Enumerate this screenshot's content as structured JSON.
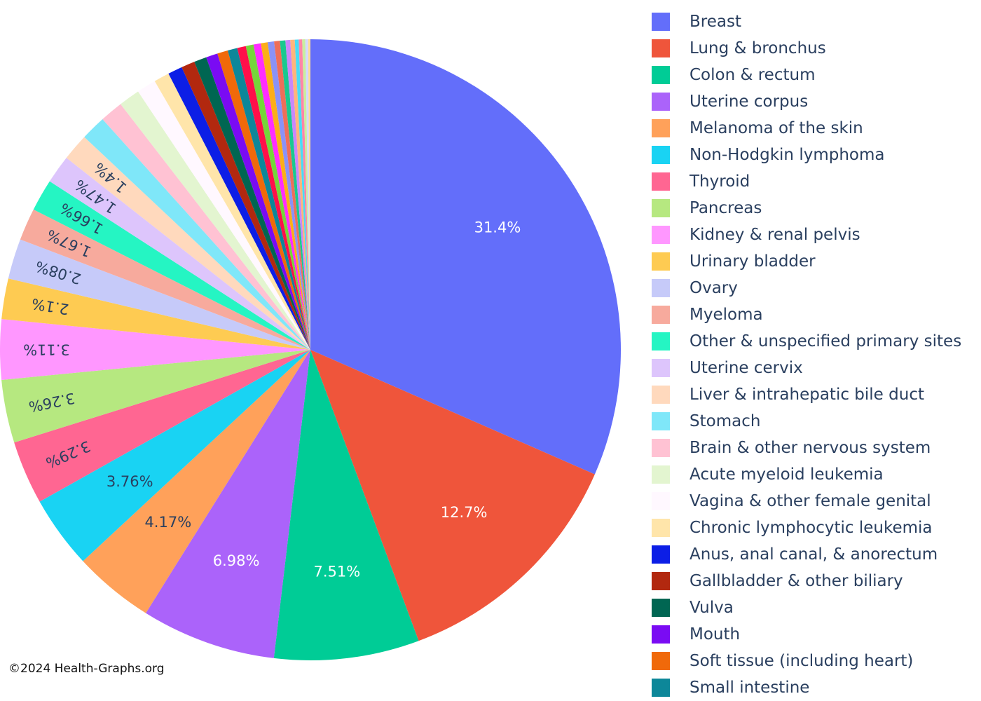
{
  "copyright": "©2024 Health-Graphs.org",
  "chart_data": {
    "type": "pie",
    "title": "",
    "direction": "clockwise",
    "start": "12 o'clock",
    "legend_position": "right",
    "slices": [
      {
        "label": "Breast",
        "value": 31.4,
        "text": "31.4%",
        "color": "#636efa"
      },
      {
        "label": "Lung & bronchus",
        "value": 12.7,
        "text": "12.7%",
        "color": "#ef553b"
      },
      {
        "label": "Colon & rectum",
        "value": 7.51,
        "text": "7.51%",
        "color": "#00cc96"
      },
      {
        "label": "Uterine corpus",
        "value": 6.98,
        "text": "6.98%",
        "color": "#ab63fa"
      },
      {
        "label": "Melanoma of the skin",
        "value": 4.17,
        "text": "4.17%",
        "color": "#ffa15a"
      },
      {
        "label": "Non-Hodgkin lymphoma",
        "value": 3.76,
        "text": "3.76%",
        "color": "#19d3f3"
      },
      {
        "label": "Thyroid",
        "value": 3.29,
        "text": "3.29%",
        "color": "#ff6692"
      },
      {
        "label": "Pancreas",
        "value": 3.26,
        "text": "3.26%",
        "color": "#b6e880"
      },
      {
        "label": "Kidney & renal pelvis",
        "value": 3.11,
        "text": "3.11%",
        "color": "#ff97ff"
      },
      {
        "label": "Urinary bladder",
        "value": 2.1,
        "text": "2.1%",
        "color": "#fecb52"
      },
      {
        "label": "Ovary",
        "value": 2.08,
        "text": "2.08%",
        "color": "#c6caf9"
      },
      {
        "label": "Myeloma",
        "value": 1.67,
        "text": "1.67%",
        "color": "#f7aa9d"
      },
      {
        "label": "Other & unspecified primary sites",
        "value": 1.66,
        "text": "1.66%",
        "color": "#25f5c3"
      },
      {
        "label": "Uterine cervix",
        "value": 1.47,
        "text": "1.47%",
        "color": "#ddc5fc"
      },
      {
        "label": "Liver & intrahepatic bile duct",
        "value": 1.4,
        "text": "1.4%",
        "color": "#ffd9bd"
      },
      {
        "label": "Stomach",
        "value": 1.3,
        "text": "",
        "color": "#7fe7f9"
      },
      {
        "label": "Brain & other nervous system",
        "value": 1.2,
        "text": "",
        "color": "#ffc2d3"
      },
      {
        "label": "Acute myeloid leukemia",
        "value": 1.1,
        "text": "",
        "color": "#e3f5d0"
      },
      {
        "label": "Vagina & other female genital",
        "value": 1.0,
        "text": "",
        "color": "#fff8ff"
      },
      {
        "label": "Chronic lymphocytic leukemia",
        "value": 0.8,
        "text": "",
        "color": "#ffe5aa"
      },
      {
        "label": "Anus, anal canal, & anorectum",
        "value": 0.75,
        "text": "",
        "color": "#0c1ee6"
      },
      {
        "label": "Gallbladder & other biliary",
        "value": 0.7,
        "text": "",
        "color": "#b2280f"
      },
      {
        "label": "Vulva",
        "value": 0.65,
        "text": "",
        "color": "#006652"
      },
      {
        "label": "Mouth",
        "value": 0.6,
        "text": "",
        "color": "#7a0bf3"
      },
      {
        "label": "Soft tissue (including heart)",
        "value": 0.55,
        "text": "",
        "color": "#f0690a"
      },
      {
        "label": "Small intestine",
        "value": 0.5,
        "text": "",
        "color": "#0d8799"
      },
      {
        "label": "",
        "value": 0.45,
        "text": "",
        "color": "#ff0f4a"
      },
      {
        "label": "",
        "value": 0.4,
        "text": "",
        "color": "#76d63a"
      },
      {
        "label": "",
        "value": 0.38,
        "text": "",
        "color": "#ff2dff"
      },
      {
        "label": "",
        "value": 0.35,
        "text": "",
        "color": "#fcae18"
      },
      {
        "label": "",
        "value": 0.33,
        "text": "",
        "color": "#8a92f7"
      },
      {
        "label": "",
        "value": 0.3,
        "text": "",
        "color": "#ee6e59"
      },
      {
        "label": "",
        "value": 0.28,
        "text": "",
        "color": "#19c98f"
      },
      {
        "label": "",
        "value": 0.25,
        "text": "",
        "color": "#c887fb"
      },
      {
        "label": "",
        "value": 0.23,
        "text": "",
        "color": "#ffb57b"
      },
      {
        "label": "",
        "value": 0.2,
        "text": "",
        "color": "#47dcf5"
      },
      {
        "label": "",
        "value": 0.18,
        "text": "",
        "color": "#ff85a8"
      },
      {
        "label": "",
        "value": 0.16,
        "text": "",
        "color": "#c9ee9f"
      },
      {
        "label": "",
        "value": 0.14,
        "text": "",
        "color": "#d4d8ff"
      },
      {
        "label": "",
        "value": 0.12,
        "text": "",
        "color": "#fddc98"
      }
    ]
  }
}
